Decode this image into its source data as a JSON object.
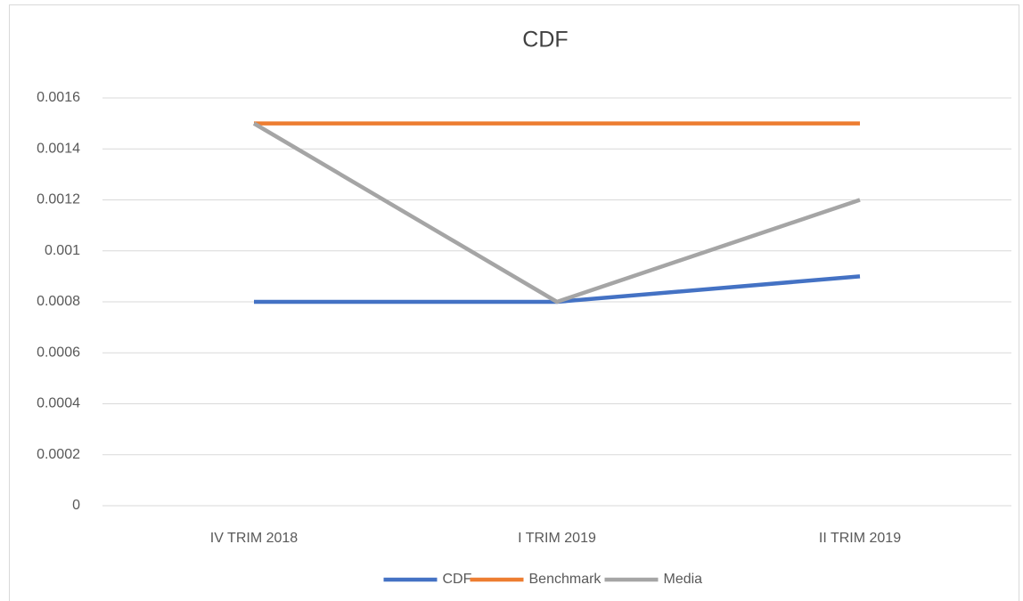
{
  "chart_data": {
    "type": "line",
    "title": "CDF",
    "categories": [
      "IV TRIM 2018",
      "I TRIM 2019",
      "II TRIM 2019"
    ],
    "series": [
      {
        "name": "CDF",
        "color": "#4472c4",
        "values": [
          0.0008,
          0.0008,
          0.0009
        ]
      },
      {
        "name": "Benchmark",
        "color": "#ed7d31",
        "values": [
          0.0015,
          0.0015,
          0.0015
        ]
      },
      {
        "name": "Media",
        "color": "#a5a5a5",
        "values": [
          0.0015,
          0.0008,
          0.0012
        ]
      }
    ],
    "ylim": [
      0,
      0.0016
    ],
    "yticks": [
      0,
      0.0002,
      0.0004,
      0.0006,
      0.0008,
      0.001,
      0.0012,
      0.0014,
      0.0016
    ],
    "grid": true,
    "legend": "bottom"
  }
}
